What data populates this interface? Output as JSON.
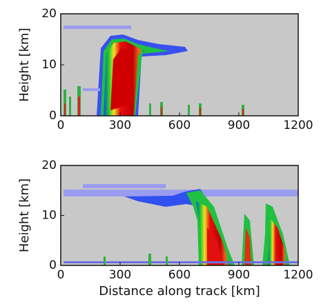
{
  "chart_data": [
    {
      "type": "heatmap",
      "ylabel": "Height [km]",
      "xlim": [
        0,
        1200
      ],
      "ylim": [
        0,
        20
      ],
      "xticks": [
        0,
        300,
        600,
        900,
        1200
      ],
      "yticks": [
        0,
        10,
        20
      ],
      "background": "#c8c8c8"
    },
    {
      "type": "heatmap",
      "ylabel": "Height [km]",
      "xlabel": "Distance along track [km]",
      "xlim": [
        0,
        1200
      ],
      "ylim": [
        0,
        20
      ],
      "xticks": [
        0,
        300,
        600,
        900,
        1200
      ],
      "yticks": [
        0,
        10,
        20
      ],
      "background": "#c8c8c8"
    }
  ]
}
